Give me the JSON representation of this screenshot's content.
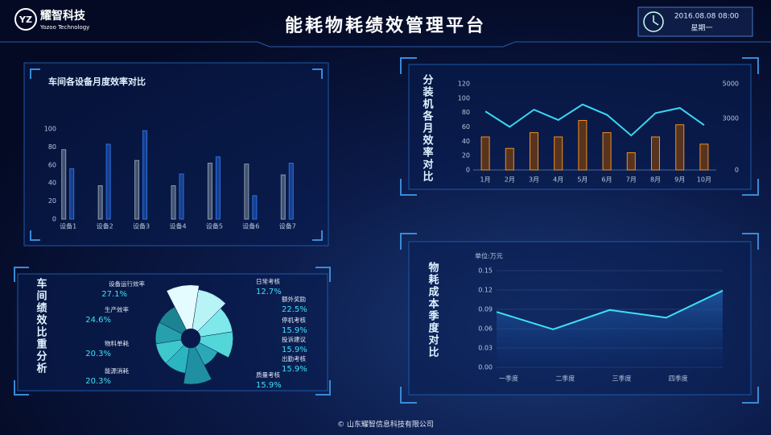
{
  "header": {
    "logo_name": "耀智科技",
    "logo_subtitle": "Yozoo Technology",
    "title": "能耗物耗绩效管理平台",
    "datetime": "2016.08.08 08:00",
    "weekday": "星期一"
  },
  "footer": {
    "copyright": "© 山东耀智信息科技有限公司"
  },
  "chart_data": [
    {
      "type": "bar",
      "title": "车间各设备月度效率对比",
      "categories": [
        "设备1",
        "设备2",
        "设备3",
        "设备4",
        "设备5",
        "设备6",
        "设备7"
      ],
      "series": [
        {
          "color": "#8a9aaa",
          "values": [
            77,
            37,
            65,
            37,
            62,
            61,
            49
          ]
        },
        {
          "color": "#2a6ee0",
          "values": [
            56,
            83,
            98,
            50,
            69,
            26,
            62
          ]
        }
      ],
      "ylim": [
        0,
        100
      ],
      "yticks": [
        0,
        20,
        40,
        60,
        80,
        100
      ]
    },
    {
      "type": "combo",
      "title": "分装机各月效率对比",
      "categories": [
        "1月",
        "2月",
        "3月",
        "4月",
        "5月",
        "6月",
        "7月",
        "8月",
        "9月",
        "10月"
      ],
      "series": [
        {
          "type": "bar",
          "color": "#f0901e",
          "values": [
            46,
            30,
            52,
            46,
            69,
            52,
            24,
            46,
            63,
            36
          ]
        },
        {
          "type": "line",
          "color": "#3ad6f0",
          "axis": "y2",
          "values": [
            3400,
            2500,
            3500,
            2900,
            3800,
            3200,
            2000,
            3300,
            3600,
            2600
          ]
        }
      ],
      "ylim": [
        0,
        120
      ],
      "yticks": [
        0,
        20,
        40,
        60,
        80,
        100,
        120
      ],
      "y2lim": [
        0,
        5000
      ],
      "y2ticks": [
        0,
        3000,
        5000
      ]
    },
    {
      "type": "rose",
      "title": "车间绩效比重分析",
      "categories": [
        "设备运行效率",
        "生产效率",
        "物料单耗",
        "能源消耗",
        "日常考核",
        "额外奖励",
        "停机考核",
        "投诉建议",
        "出勤考核",
        "质量考核"
      ],
      "values": [
        27.1,
        24.6,
        20.3,
        20.3,
        12.7,
        22.5,
        15.9,
        15.9,
        15.9,
        15.9
      ],
      "value_labels": [
        "27.1%",
        "24.6%",
        "20.3%",
        "20.3%",
        "12.7%",
        "22.5%",
        "15.9%",
        "15.9%",
        "15.9%",
        "15.9%"
      ],
      "colors": [
        "#e4fcff",
        "#b8f4f6",
        "#7ee8ea",
        "#52d6d8",
        "#2aa8b8",
        "#1f8fa2",
        "#2bb5c0",
        "#3fc8cc",
        "#27a0ad",
        "#1c8392"
      ]
    },
    {
      "type": "area",
      "title": "物耗成本季度对比",
      "unit_label": "单位:万元",
      "categories": [
        "一季度",
        "二季度",
        "三季度",
        "四季度",
        null
      ],
      "values": [
        0.086,
        0.059,
        0.089,
        0.077,
        0.119
      ],
      "color": "#3ee0f5",
      "ylim": [
        0,
        0.15
      ],
      "yticks": [
        {
          "value": 0,
          "label": "0.00"
        },
        {
          "value": 0.03,
          "label": "0.03"
        },
        {
          "value": 0.06,
          "label": "0.06"
        },
        {
          "value": 0.09,
          "label": "0.09"
        },
        {
          "value": 0.12,
          "label": "0.12"
        },
        {
          "value": 0.15,
          "label": "0.15"
        }
      ],
      "grid": true
    }
  ]
}
